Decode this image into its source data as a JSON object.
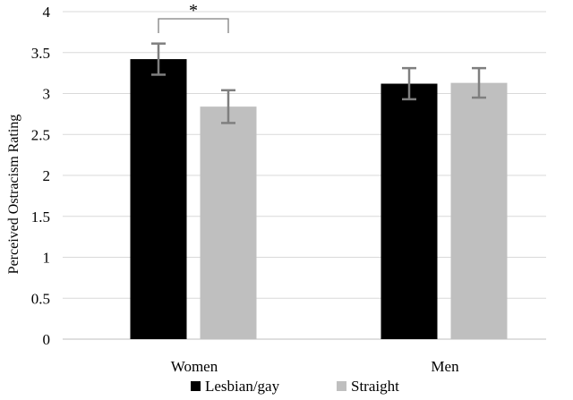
{
  "chart_data": {
    "type": "bar",
    "title": "",
    "xlabel": "",
    "ylabel": "Perceived Ostracism Rating",
    "ylim": [
      0,
      4
    ],
    "yticks": [
      "0",
      "0.5",
      "1",
      "1.5",
      "2",
      "2.5",
      "3",
      "3.5",
      "4"
    ],
    "categories": [
      "Women",
      "Men"
    ],
    "series": [
      {
        "name": "Lesbian/gay",
        "color": "#000000",
        "values": [
          3.42,
          3.12
        ],
        "errors": [
          0.19,
          0.19
        ]
      },
      {
        "name": "Straight",
        "color": "#bfbfbf",
        "values": [
          2.84,
          3.13
        ],
        "errors": [
          0.2,
          0.18
        ]
      }
    ],
    "annotations": [
      {
        "text": "*",
        "between": [
          "Lesbian/gay",
          "Straight"
        ],
        "category": "Women"
      }
    ],
    "grid": true,
    "legend": "bottom"
  }
}
